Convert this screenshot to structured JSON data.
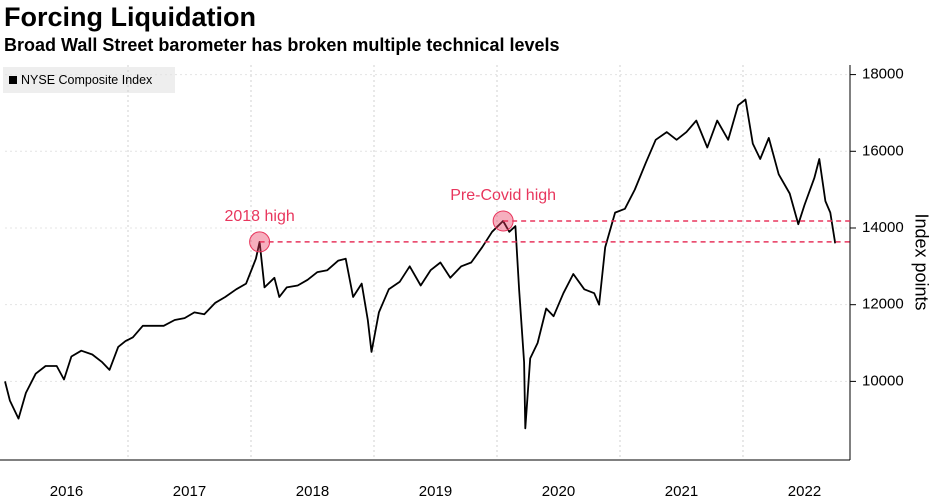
{
  "chart_data": {
    "type": "line",
    "title": "Forcing Liquidation",
    "subtitle": "Broad Wall Street barometer has broken multiple technical levels",
    "y_label": "Index points",
    "grid": true,
    "legend": "top-left",
    "xlim": [
      2016,
      2022.87
    ],
    "ylim": [
      7950,
      18250
    ],
    "yticks": [
      10000,
      12000,
      14000,
      16000,
      18000
    ],
    "xticks": [
      {
        "value": 2016.5,
        "label": "2016"
      },
      {
        "value": 2017.5,
        "label": "2017"
      },
      {
        "value": 2018.5,
        "label": "2018"
      },
      {
        "value": 2019.5,
        "label": "2019"
      },
      {
        "value": 2020.5,
        "label": "2020"
      },
      {
        "value": 2021.5,
        "label": "2021"
      },
      {
        "value": 2022.5,
        "label": "2022"
      }
    ],
    "xgrid": [
      2017,
      2018,
      2019,
      2020,
      2021,
      2022
    ],
    "annotations": [
      {
        "text": "2018 high",
        "x": 2018.07,
        "y": 13637,
        "color": "#e8365d"
      },
      {
        "text": "Pre-Covid high",
        "x": 2020.05,
        "y": 14183,
        "color": "#e8365d"
      }
    ],
    "series": [
      {
        "name": "NYSE Composite Index",
        "color": "#000000",
        "x": [
          2016.0,
          2016.04,
          2016.11,
          2016.17,
          2016.25,
          2016.33,
          2016.42,
          2016.48,
          2016.54,
          2016.62,
          2016.71,
          2016.79,
          2016.85,
          2016.92,
          2016.98,
          2017.04,
          2017.12,
          2017.21,
          2017.29,
          2017.38,
          2017.46,
          2017.54,
          2017.62,
          2017.71,
          2017.79,
          2017.88,
          2017.96,
          2018.04,
          2018.07,
          2018.11,
          2018.19,
          2018.23,
          2018.29,
          2018.38,
          2018.46,
          2018.54,
          2018.62,
          2018.71,
          2018.77,
          2018.83,
          2018.9,
          2018.95,
          2018.98,
          2019.04,
          2019.12,
          2019.21,
          2019.29,
          2019.38,
          2019.46,
          2019.54,
          2019.62,
          2019.71,
          2019.79,
          2019.88,
          2019.96,
          2020.05,
          2020.1,
          2020.15,
          2020.18,
          2020.22,
          2020.23,
          2020.27,
          2020.33,
          2020.4,
          2020.46,
          2020.54,
          2020.62,
          2020.71,
          2020.79,
          2020.83,
          2020.88,
          2020.96,
          2021.04,
          2021.12,
          2021.21,
          2021.29,
          2021.38,
          2021.46,
          2021.54,
          2021.62,
          2021.71,
          2021.79,
          2021.88,
          2021.96,
          2022.02,
          2022.08,
          2022.14,
          2022.21,
          2022.29,
          2022.38,
          2022.45,
          2022.5,
          2022.58,
          2022.62,
          2022.67,
          2022.71,
          2022.75
        ],
        "values": [
          10000,
          9500,
          9030,
          9700,
          10200,
          10400,
          10400,
          10050,
          10650,
          10800,
          10700,
          10500,
          10300,
          10900,
          11050,
          11150,
          11450,
          11450,
          11450,
          11600,
          11650,
          11800,
          11750,
          12050,
          12200,
          12400,
          12550,
          13200,
          13637,
          12450,
          12700,
          12200,
          12450,
          12500,
          12650,
          12850,
          12900,
          13150,
          13200,
          12200,
          12550,
          11600,
          10770,
          11800,
          12400,
          12600,
          13000,
          12500,
          12900,
          13100,
          12700,
          13000,
          13100,
          13500,
          13900,
          14183,
          13900,
          14050,
          12400,
          10500,
          8777,
          10600,
          11000,
          11900,
          11700,
          12300,
          12800,
          12400,
          12300,
          12000,
          13500,
          14400,
          14500,
          15000,
          15700,
          16300,
          16500,
          16300,
          16500,
          16800,
          16100,
          16800,
          16300,
          17200,
          17350,
          16200,
          15800,
          16350,
          15400,
          14900,
          14100,
          14600,
          15300,
          15800,
          14700,
          14400,
          13600
        ]
      }
    ]
  }
}
